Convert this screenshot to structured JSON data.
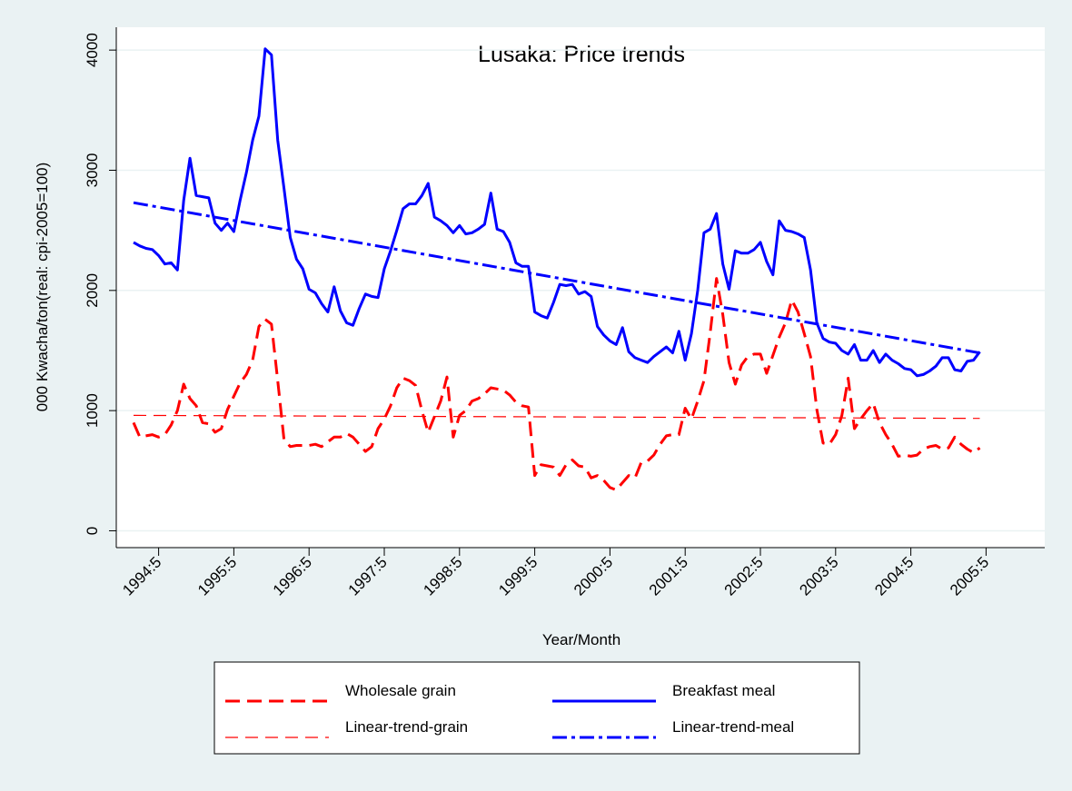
{
  "chart_data": {
    "type": "line",
    "title": "Lusaka: Price trends",
    "x_label": "Year/Month",
    "y_label": "000 Kwacha/ton(real: cpi-2005=100)",
    "categories": [
      "1994:1",
      "1994:2",
      "1994:3",
      "1994:4",
      "1994:5",
      "1994:6",
      "1994:7",
      "1994:8",
      "1994:9",
      "1994:10",
      "1994:11",
      "1994:12",
      "1995:1",
      "1995:2",
      "1995:3",
      "1995:4",
      "1995:5",
      "1995:6",
      "1995:7",
      "1995:8",
      "1995:9",
      "1995:10",
      "1995:11",
      "1995:12",
      "1996:1",
      "1996:2",
      "1996:3",
      "1996:4",
      "1996:5",
      "1996:6",
      "1996:7",
      "1996:8",
      "1996:9",
      "1996:10",
      "1996:11",
      "1996:12",
      "1997:1",
      "1997:2",
      "1997:3",
      "1997:4",
      "1997:5",
      "1997:6",
      "1997:7",
      "1997:8",
      "1997:9",
      "1997:10",
      "1997:11",
      "1997:12",
      "1998:1",
      "1998:2",
      "1998:3",
      "1998:4",
      "1998:5",
      "1998:6",
      "1998:7",
      "1998:8",
      "1998:9",
      "1998:10",
      "1998:11",
      "1998:12",
      "1999:1",
      "1999:2",
      "1999:3",
      "1999:4",
      "1999:5",
      "1999:6",
      "1999:7",
      "1999:8",
      "1999:9",
      "1999:10",
      "1999:11",
      "1999:12",
      "2000:1",
      "2000:2",
      "2000:3",
      "2000:4",
      "2000:5",
      "2000:6",
      "2000:7",
      "2000:8",
      "2000:9",
      "2000:10",
      "2000:11",
      "2000:12",
      "2001:1",
      "2001:2",
      "2001:3",
      "2001:4",
      "2001:5",
      "2001:6",
      "2001:7",
      "2001:8",
      "2001:9",
      "2001:10",
      "2001:11",
      "2001:12",
      "2002:1",
      "2002:2",
      "2002:3",
      "2002:4",
      "2002:5",
      "2002:6",
      "2002:7",
      "2002:8",
      "2002:9",
      "2002:10",
      "2002:11",
      "2002:12",
      "2003:1",
      "2003:2",
      "2003:3",
      "2003:4",
      "2003:5",
      "2003:6",
      "2003:7",
      "2003:8",
      "2003:9",
      "2003:10",
      "2003:11",
      "2003:12",
      "2004:1",
      "2004:2",
      "2004:3",
      "2004:4",
      "2004:5",
      "2004:6",
      "2004:7",
      "2004:8",
      "2004:9",
      "2004:10",
      "2004:11",
      "2004:12",
      "2005:1",
      "2005:2",
      "2005:3",
      "2005:4",
      "2005:5"
    ],
    "series": [
      {
        "name": "Wholesale grain",
        "color": "#ff0000",
        "style": "dash",
        "values": [
          900,
          780,
          790,
          800,
          780,
          800,
          880,
          1000,
          1220,
          1100,
          1040,
          900,
          890,
          820,
          850,
          1010,
          1120,
          1230,
          1300,
          1420,
          1700,
          1760,
          1720,
          1250,
          760,
          700,
          710,
          710,
          710,
          720,
          700,
          740,
          780,
          780,
          810,
          780,
          720,
          660,
          700,
          850,
          930,
          1040,
          1190,
          1270,
          1250,
          1210,
          1000,
          820,
          950,
          1080,
          1280,
          780,
          960,
          1000,
          1080,
          1100,
          1140,
          1190,
          1180,
          1170,
          1130,
          1070,
          1040,
          1030,
          460,
          550,
          540,
          530,
          460,
          550,
          590,
          540,
          530,
          440,
          460,
          420,
          360,
          340,
          400,
          460,
          440,
          570,
          580,
          630,
          720,
          790,
          800,
          800,
          1020,
          930,
          1080,
          1250,
          1650,
          2100,
          1800,
          1400,
          1220,
          1380,
          1450,
          1470,
          1470,
          1310,
          1460,
          1610,
          1730,
          1920,
          1820,
          1640,
          1450,
          1010,
          730,
          720,
          800,
          960,
          1270,
          850,
          930,
          1000,
          1060,
          900,
          800,
          720,
          620,
          630,
          620,
          630,
          680,
          700,
          710,
          680,
          690,
          780,
          720,
          680,
          650,
          690,
          null
        ]
      },
      {
        "name": "Breakfast meal",
        "color": "#0000ff",
        "style": "solid",
        "values": [
          2400,
          2370,
          2350,
          2340,
          2290,
          2220,
          2230,
          2170,
          2750,
          3100,
          2790,
          2780,
          2770,
          2560,
          2500,
          2560,
          2490,
          2750,
          2980,
          3250,
          3450,
          4010,
          3960,
          3250,
          2850,
          2440,
          2260,
          2180,
          2010,
          1980,
          1890,
          1820,
          2030,
          1830,
          1730,
          1710,
          1850,
          1970,
          1950,
          1940,
          2180,
          2330,
          2500,
          2680,
          2720,
          2720,
          2790,
          2890,
          2610,
          2580,
          2540,
          2480,
          2540,
          2470,
          2480,
          2510,
          2550,
          2810,
          2510,
          2490,
          2400,
          2230,
          2200,
          2200,
          1820,
          1790,
          1770,
          1900,
          2050,
          2040,
          2050,
          1970,
          1990,
          1950,
          1700,
          1630,
          1580,
          1550,
          1690,
          1490,
          1440,
          1420,
          1400,
          1450,
          1490,
          1530,
          1480,
          1660,
          1420,
          1640,
          2000,
          2480,
          2510,
          2640,
          2220,
          2010,
          2330,
          2310,
          2310,
          2340,
          2400,
          2240,
          2130,
          2580,
          2500,
          2490,
          2470,
          2440,
          2170,
          1730,
          1600,
          1570,
          1560,
          1500,
          1470,
          1550,
          1420,
          1420,
          1500,
          1400,
          1470,
          1420,
          1390,
          1350,
          1340,
          1290,
          1300,
          1330,
          1370,
          1440,
          1440,
          1340,
          1330,
          1410,
          1420,
          1490,
          null
        ]
      },
      {
        "name": "Linear-trend-grain",
        "color": "#ff0000",
        "style": "thindash",
        "x": [
          "1994:1",
          "2005:4"
        ],
        "values": [
          960,
          935
        ]
      },
      {
        "name": "Linear-trend-meal",
        "color": "#0000ff",
        "style": "dashdot",
        "x": [
          "1994:1",
          "2005:4"
        ],
        "values": [
          2730,
          1480
        ]
      }
    ],
    "xticks": [
      "1994:5",
      "1995:5",
      "1996:5",
      "1997:5",
      "1998:5",
      "1999:5",
      "2000:5",
      "2001:5",
      "2002:5",
      "2003:5",
      "2004:5",
      "2005:5"
    ],
    "ylim": [
      -140,
      4190
    ],
    "yticks": [
      0,
      1000,
      2000,
      3000,
      4000
    ],
    "grid": true
  }
}
